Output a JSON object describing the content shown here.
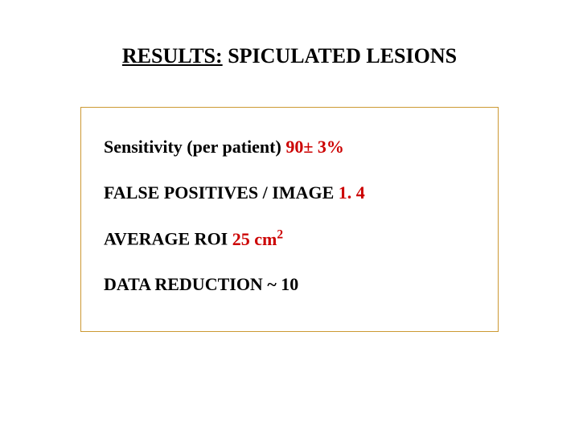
{
  "title": {
    "part1": "RESULTS:",
    "part2": " SPICULATED LESIONS"
  },
  "box": {
    "border_color": "#cc9933",
    "lines": [
      {
        "label": "Sensitivity (per patient) ",
        "value": "90± 3%"
      },
      {
        "label": "FALSE POSITIVES / IMAGE ",
        "value": "1. 4"
      },
      {
        "label": "AVERAGE ROI ",
        "value_prefix": "25 cm",
        "value_sup": "2"
      },
      {
        "label": "DATA REDUCTION ",
        "value": "~ 10"
      }
    ]
  },
  "colors": {
    "highlight": "#cc0000",
    "text": "#000000",
    "background": "#ffffff"
  },
  "typography": {
    "font_family": "Times New Roman",
    "title_fontsize": 26,
    "body_fontsize": 22,
    "weight": "bold"
  }
}
